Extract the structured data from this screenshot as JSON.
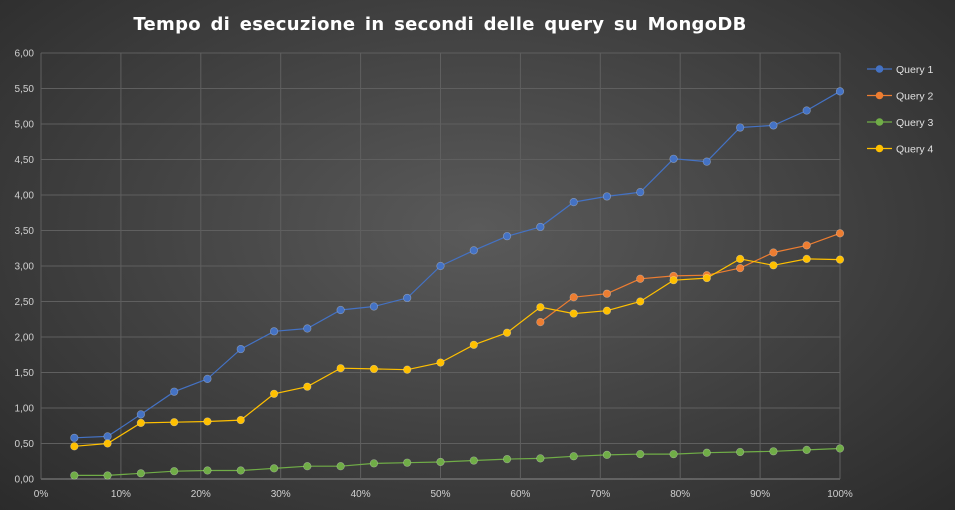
{
  "chart_data": {
    "type": "line",
    "title": "Tempo di esecuzione  in secondi  delle query  su MongoDB",
    "xlabel": "",
    "ylabel": "",
    "xlim": [
      0,
      100
    ],
    "ylim": [
      0,
      6
    ],
    "grid": true,
    "legend_position": "right",
    "x_ticks": [
      0,
      10,
      20,
      30,
      40,
      50,
      60,
      70,
      80,
      90,
      100
    ],
    "x_tick_labels": [
      "0%",
      "10%",
      "20%",
      "30%",
      "40%",
      "50%",
      "60%",
      "70%",
      "80%",
      "90%",
      "100%"
    ],
    "y_ticks": [
      0,
      0.5,
      1,
      1.5,
      2,
      2.5,
      3,
      3.5,
      4,
      4.5,
      5,
      5.5,
      6
    ],
    "y_tick_labels": [
      "0,00",
      "0,50",
      "1,00",
      "1,50",
      "2,00",
      "2,50",
      "3,00",
      "3,50",
      "4,00",
      "4,50",
      "5,00",
      "5,50",
      "6,00"
    ],
    "series": [
      {
        "name": "Query 1",
        "color": "#4472c4",
        "x": [
          4.17,
          8.33,
          12.5,
          16.67,
          20.83,
          25,
          29.17,
          33.33,
          37.5,
          41.67,
          45.83,
          50,
          54.17,
          58.33,
          62.5,
          66.67,
          70.83,
          75,
          79.17,
          83.33,
          87.5,
          91.67,
          95.83,
          100
        ],
        "y": [
          0.58,
          0.6,
          0.91,
          1.23,
          1.41,
          1.83,
          2.08,
          2.12,
          2.38,
          2.43,
          2.55,
          3.0,
          3.22,
          3.42,
          3.55,
          3.9,
          3.98,
          4.04,
          4.51,
          4.47,
          4.95,
          4.98,
          5.19,
          5.46
        ]
      },
      {
        "name": "Query 2",
        "color": "#ed7d31",
        "x": [
          62.5,
          66.67,
          70.83,
          75,
          79.17,
          83.33,
          87.5,
          91.67,
          95.83,
          100
        ],
        "y": [
          2.21,
          2.56,
          2.61,
          2.82,
          2.86,
          2.87,
          2.97,
          3.19,
          3.29,
          3.46
        ]
      },
      {
        "name": "Query 3",
        "color": "#70ad47",
        "x": [
          4.17,
          8.33,
          12.5,
          16.67,
          20.83,
          25,
          29.17,
          33.33,
          37.5,
          41.67,
          45.83,
          50,
          54.17,
          58.33,
          62.5,
          66.67,
          70.83,
          75,
          79.17,
          83.33,
          87.5,
          91.67,
          95.83,
          100
        ],
        "y": [
          0.05,
          0.05,
          0.08,
          0.11,
          0.12,
          0.12,
          0.15,
          0.18,
          0.18,
          0.22,
          0.23,
          0.24,
          0.26,
          0.28,
          0.29,
          0.32,
          0.34,
          0.35,
          0.35,
          0.37,
          0.38,
          0.39,
          0.41,
          0.43
        ]
      },
      {
        "name": "Query 4",
        "color": "#ffc000",
        "x": [
          4.17,
          8.33,
          12.5,
          16.67,
          20.83,
          25,
          29.17,
          33.33,
          37.5,
          41.67,
          45.83,
          50,
          54.17,
          58.33,
          62.5,
          66.67,
          70.83,
          75,
          79.17,
          83.33,
          87.5,
          91.67,
          95.83,
          100
        ],
        "y": [
          0.46,
          0.5,
          0.79,
          0.8,
          0.81,
          0.83,
          1.2,
          1.3,
          1.56,
          1.55,
          1.54,
          1.64,
          1.89,
          2.06,
          2.42,
          2.33,
          2.37,
          2.5,
          2.8,
          2.83,
          3.1,
          3.01,
          3.1,
          3.09
        ]
      }
    ]
  }
}
